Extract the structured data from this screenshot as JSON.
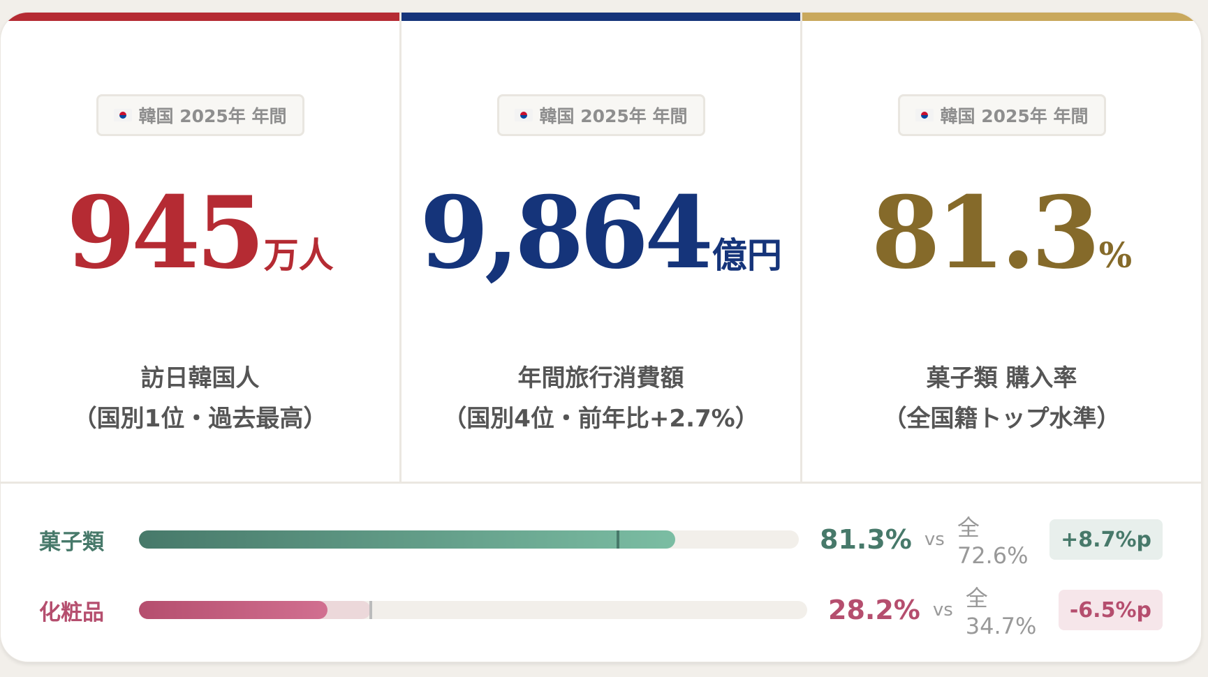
{
  "colors": {
    "red": "#b52b33",
    "navy": "#15347a",
    "gold": "#856a2a",
    "gold_bar": "#c9a85c",
    "green": "#47796a",
    "pink": "#b54e6e"
  },
  "cards": [
    {
      "badge": "韓国 2025年 年間",
      "flag_icon": "korea-flag-icon",
      "value": "945",
      "unit": "万人",
      "label1": "訪日韓国人",
      "label2": "（国別1位・過去最高）"
    },
    {
      "badge": "韓国 2025年 年間",
      "flag_icon": "korea-flag-icon",
      "value": "9,864",
      "unit": "億円",
      "label1": "年間旅行消費額",
      "label2": "（国別4位・前年比+2.7%）"
    },
    {
      "badge": "韓国 2025年 年間",
      "flag_icon": "korea-flag-icon",
      "value": "81.3",
      "unit": "%",
      "label1": "菓子類 購入率",
      "label2": "（全国籍トップ水準）"
    }
  ],
  "comparisons": [
    {
      "name": "菓子類",
      "value_pct": 81.3,
      "value": "81.3%",
      "vs": "vs",
      "national_pct": 72.6,
      "national": "全72.6%",
      "diff": "+8.7%p"
    },
    {
      "name": "化粧品",
      "value_pct": 28.2,
      "value": "28.2%",
      "vs": "vs",
      "national_pct": 34.7,
      "national": "全34.7%",
      "diff": "-6.5%p"
    }
  ]
}
